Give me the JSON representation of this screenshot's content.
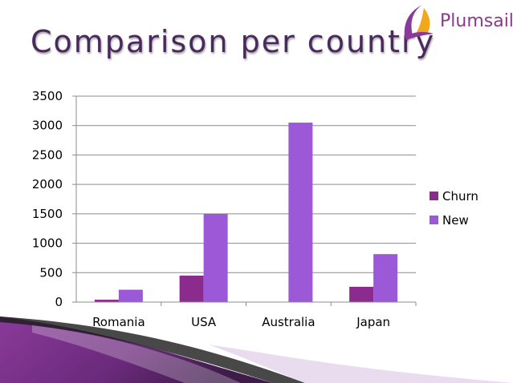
{
  "slide": {
    "title": "Comparison per country",
    "logo_text": "Plumsail",
    "colors": {
      "title": "#4a2a5c",
      "accent": "#8a3a8a",
      "swoosh_dark": "#3d1c4a",
      "swoosh_light": "#a36bb8"
    }
  },
  "chart_data": {
    "type": "bar",
    "title": "",
    "xlabel": "",
    "ylabel": "",
    "categories": [
      "Romania",
      "USA",
      "Australia",
      "Japan"
    ],
    "series": [
      {
        "name": "Churn",
        "values": [
          40,
          450,
          0,
          260
        ],
        "color": "#8b2b8e"
      },
      {
        "name": "New",
        "values": [
          210,
          1500,
          3050,
          815
        ],
        "color": "#9b59d8"
      }
    ],
    "ylim": [
      0,
      3500
    ],
    "yticks": [
      "0",
      "500",
      "1000",
      "1500",
      "2000",
      "2500",
      "3000",
      "3500"
    ],
    "grid": true,
    "legend_position": "right"
  }
}
